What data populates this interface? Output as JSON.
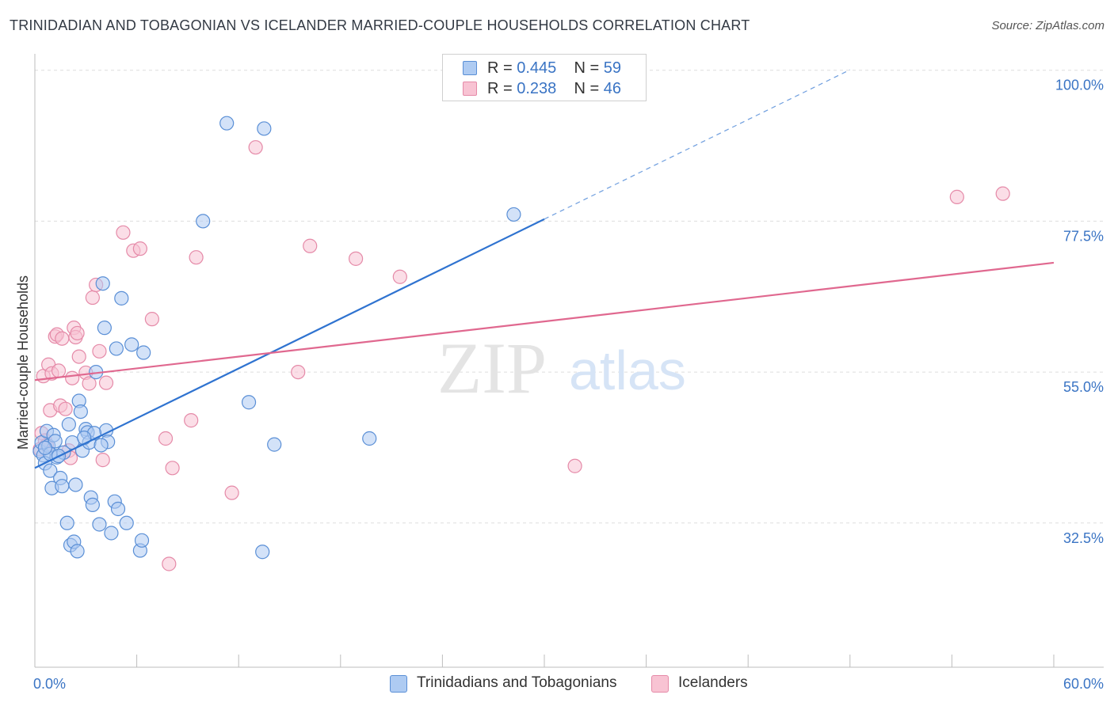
{
  "title": "TRINIDADIAN AND TOBAGONIAN VS ICELANDER MARRIED-COUPLE HOUSEHOLDS CORRELATION CHART",
  "source": "Source: ZipAtlas.com",
  "watermark": {
    "zip": "ZIP",
    "atlas": "atlas"
  },
  "colors": {
    "blue_fill": "#aecbf2",
    "blue_stroke": "#5a8fd6",
    "blue_line": "#2f73d0",
    "pink_fill": "#f8c3d3",
    "pink_stroke": "#e58aa8",
    "pink_line": "#e0688f",
    "tick_text": "#3a74c4",
    "grid": "#dddddd"
  },
  "legend": {
    "rows": [
      {
        "r_label": "R = ",
        "r_value": "0.445",
        "n_label": "N = ",
        "n_value": "59"
      },
      {
        "r_label": "R = ",
        "r_value": "0.238",
        "n_label": "N = ",
        "n_value": "46"
      }
    ]
  },
  "chart_data": {
    "type": "scatter",
    "title": "TRINIDADIAN AND TOBAGONIAN VS ICELANDER MARRIED-COUPLE HOUSEHOLDS CORRELATION CHART",
    "xlabel": "",
    "ylabel": "Married-couple Households",
    "xlim": [
      0,
      60
    ],
    "ylim": [
      11,
      101.5
    ],
    "x_tick_labels": [
      "0.0%",
      "60.0%"
    ],
    "y_ticks": [
      32.5,
      55.0,
      77.5,
      100.0
    ],
    "y_tick_labels": [
      "32.5%",
      "55.0%",
      "77.5%",
      "100.0%"
    ],
    "grid": true,
    "legend_position": "top-center",
    "series": [
      {
        "name": "Trinidadians and Tobagonians",
        "color": "blue",
        "r": 0.445,
        "n": 59,
        "trend": {
          "x0": 0.0,
          "y0": 40.7,
          "x1": 30.0,
          "y1": 77.8,
          "dash_to_x": 48.0
        },
        "points": [
          [
            0.3,
            43.2
          ],
          [
            0.4,
            44.5
          ],
          [
            0.5,
            42.6
          ],
          [
            0.6,
            41.4
          ],
          [
            0.7,
            46.2
          ],
          [
            0.8,
            44.0
          ],
          [
            0.9,
            40.3
          ],
          [
            1.0,
            37.7
          ],
          [
            1.1,
            45.6
          ],
          [
            1.2,
            44.7
          ],
          [
            1.3,
            42.3
          ],
          [
            1.5,
            39.2
          ],
          [
            1.6,
            38.0
          ],
          [
            1.7,
            43.0
          ],
          [
            1.9,
            32.5
          ],
          [
            2.0,
            47.2
          ],
          [
            2.1,
            29.2
          ],
          [
            2.2,
            44.5
          ],
          [
            2.3,
            29.7
          ],
          [
            2.4,
            38.2
          ],
          [
            2.5,
            28.3
          ],
          [
            2.6,
            50.7
          ],
          [
            2.7,
            49.1
          ],
          [
            2.8,
            43.3
          ],
          [
            3.0,
            46.5
          ],
          [
            3.1,
            46.0
          ],
          [
            3.2,
            44.5
          ],
          [
            3.3,
            36.3
          ],
          [
            3.4,
            35.2
          ],
          [
            3.6,
            55.0
          ],
          [
            3.8,
            32.3
          ],
          [
            4.0,
            68.2
          ],
          [
            4.1,
            61.6
          ],
          [
            4.2,
            46.3
          ],
          [
            4.3,
            44.6
          ],
          [
            4.5,
            31.0
          ],
          [
            4.7,
            35.7
          ],
          [
            4.8,
            58.5
          ],
          [
            4.9,
            34.6
          ],
          [
            5.1,
            66.0
          ],
          [
            5.4,
            32.5
          ],
          [
            5.7,
            59.1
          ],
          [
            6.2,
            28.4
          ],
          [
            6.3,
            29.9
          ],
          [
            6.4,
            57.9
          ],
          [
            9.9,
            77.5
          ],
          [
            11.3,
            92.1
          ],
          [
            12.6,
            50.5
          ],
          [
            13.4,
            28.2
          ],
          [
            13.5,
            91.3
          ],
          [
            14.1,
            44.2
          ],
          [
            19.7,
            45.1
          ],
          [
            28.2,
            78.5
          ],
          [
            0.9,
            42.8
          ],
          [
            3.5,
            45.9
          ],
          [
            2.9,
            45.2
          ],
          [
            3.9,
            44.1
          ],
          [
            1.4,
            42.5
          ],
          [
            0.6,
            43.7
          ]
        ]
      },
      {
        "name": "Icelanders",
        "color": "pink",
        "r": 0.238,
        "n": 46,
        "trend": {
          "x0": 0.0,
          "y0": 53.8,
          "x1": 60.0,
          "y1": 71.3
        },
        "points": [
          [
            0.3,
            43.5
          ],
          [
            0.4,
            45.9
          ],
          [
            0.5,
            54.4
          ],
          [
            0.6,
            44.8
          ],
          [
            0.7,
            44.1
          ],
          [
            0.8,
            56.1
          ],
          [
            0.9,
            49.3
          ],
          [
            1.0,
            54.8
          ],
          [
            1.2,
            60.3
          ],
          [
            1.3,
            60.6
          ],
          [
            1.4,
            55.2
          ],
          [
            1.5,
            50.0
          ],
          [
            1.6,
            60.0
          ],
          [
            1.8,
            49.5
          ],
          [
            2.0,
            43.3
          ],
          [
            2.1,
            42.2
          ],
          [
            2.2,
            54.1
          ],
          [
            2.3,
            61.6
          ],
          [
            2.4,
            60.2
          ],
          [
            2.5,
            60.8
          ],
          [
            2.6,
            57.3
          ],
          [
            3.0,
            54.9
          ],
          [
            3.2,
            53.3
          ],
          [
            3.4,
            66.1
          ],
          [
            3.6,
            68.0
          ],
          [
            3.8,
            58.1
          ],
          [
            4.0,
            41.9
          ],
          [
            4.2,
            53.4
          ],
          [
            5.2,
            75.8
          ],
          [
            5.8,
            73.1
          ],
          [
            6.2,
            73.4
          ],
          [
            6.9,
            62.9
          ],
          [
            7.7,
            45.1
          ],
          [
            7.9,
            26.4
          ],
          [
            8.1,
            40.7
          ],
          [
            9.2,
            47.8
          ],
          [
            9.5,
            72.1
          ],
          [
            11.6,
            37.0
          ],
          [
            13.0,
            88.5
          ],
          [
            16.2,
            73.8
          ],
          [
            15.5,
            55.0
          ],
          [
            18.9,
            71.9
          ],
          [
            21.5,
            69.2
          ],
          [
            31.8,
            41.0
          ],
          [
            54.3,
            81.1
          ],
          [
            57.0,
            81.6
          ]
        ]
      }
    ]
  },
  "bottom_legend": [
    {
      "label": "Trinidadians and Tobagonians",
      "color": "blue"
    },
    {
      "label": "Icelanders",
      "color": "pink"
    }
  ]
}
